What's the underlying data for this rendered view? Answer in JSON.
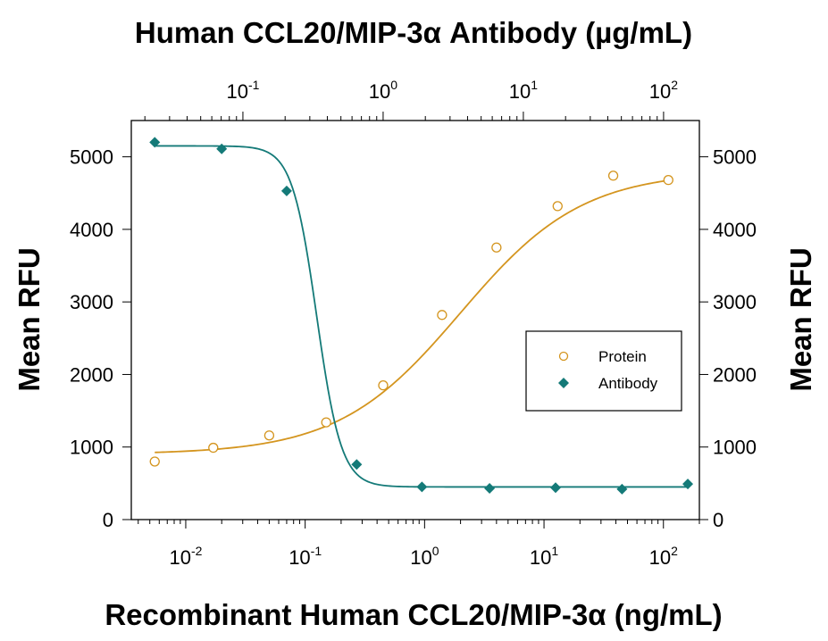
{
  "chart_data": {
    "type": "scatter",
    "top_title": "Human CCL20/MIP-3α Antibody (µg/mL)",
    "xlabel": "Recombinant Human CCL20/MIP-3α (ng/mL)",
    "ylabel_left": "Mean RFU",
    "ylabel_right": "Mean RFU",
    "x_scale": "log",
    "xlim": [
      0.0035,
      200
    ],
    "ylim": [
      0,
      5500
    ],
    "x_ticks": [
      {
        "base": "10",
        "exp": "-2"
      },
      {
        "base": "10",
        "exp": "-1"
      },
      {
        "base": "10",
        "exp": "0"
      },
      {
        "base": "10",
        "exp": "1"
      },
      {
        "base": "10",
        "exp": "2"
      }
    ],
    "x_tick_values": [
      0.01,
      0.1,
      1,
      10,
      100
    ],
    "top_xlim": [
      0.016,
      180
    ],
    "top_tick_values": [
      0.1,
      1,
      10,
      100
    ],
    "top_ticks": [
      {
        "base": "10",
        "exp": "-1"
      },
      {
        "base": "10",
        "exp": "0"
      },
      {
        "base": "10",
        "exp": "1"
      },
      {
        "base": "10",
        "exp": "2"
      }
    ],
    "y_ticks": [
      "0",
      "1000",
      "2000",
      "3000",
      "4000",
      "5000"
    ],
    "y_tick_values": [
      0,
      1000,
      2000,
      3000,
      4000,
      5000
    ],
    "legend_position": "right-middle",
    "series": [
      {
        "name": "Protein",
        "marker": "open-circle",
        "color": "#d4951f",
        "x": [
          0.0055,
          0.017,
          0.05,
          0.15,
          0.45,
          1.4,
          4.0,
          13,
          38,
          110
        ],
        "y": [
          800,
          990,
          1160,
          1340,
          1850,
          2820,
          3750,
          4320,
          4740,
          4680
        ],
        "fit": {
          "bottom": 900,
          "top": 4800,
          "ec50": 2.0,
          "hill": 0.85
        }
      },
      {
        "name": "Antibody",
        "marker": "filled-diamond",
        "color": "#147a78",
        "x": [
          0.0055,
          0.02,
          0.07,
          0.27,
          0.95,
          3.5,
          12.5,
          45,
          160
        ],
        "y": [
          5200,
          5110,
          4530,
          760,
          450,
          430,
          440,
          420,
          490
        ],
        "fit": {
          "bottom": 450,
          "top": 5150,
          "ec50": 0.125,
          "hill": 4.2
        }
      }
    ]
  }
}
